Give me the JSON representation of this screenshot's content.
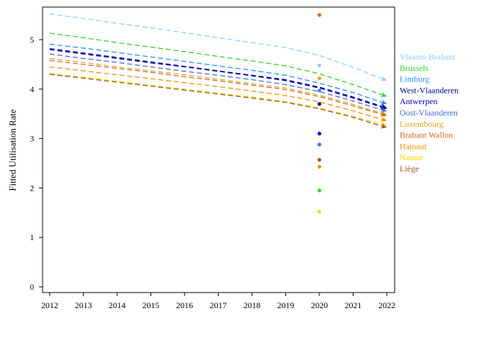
{
  "chart_data": {
    "type": "line",
    "title": "",
    "xlabel": "",
    "ylabel": "Fitted Utilisation Rate",
    "xlim": [
      2012,
      2022
    ],
    "ylim": [
      0,
      5.5
    ],
    "x_ticks": [
      "2012",
      "2013",
      "2014",
      "2015",
      "2016",
      "2017",
      "2018",
      "2019",
      "2020",
      "2021",
      "2022"
    ],
    "y_ticks": [
      "0",
      "1",
      "2",
      "3",
      "4",
      "5"
    ],
    "grid": false,
    "legend_position": "right",
    "line_style": "dashed with arrowheads",
    "x": [
      2012,
      2013,
      2014,
      2015,
      2016,
      2017,
      2018,
      2019,
      2020,
      2021,
      2022
    ],
    "series": [
      {
        "name": "Vlaams-Brabant",
        "color": "#87cefa",
        "values": [
          5.52,
          5.43,
          5.33,
          5.24,
          5.14,
          5.04,
          4.94,
          4.84,
          4.68,
          4.44,
          4.17
        ],
        "observed_2020": 4.48
      },
      {
        "name": "Brussels",
        "color": "#32cd32",
        "values": [
          5.13,
          5.04,
          4.94,
          4.85,
          4.76,
          4.66,
          4.57,
          4.47,
          4.31,
          4.09,
          3.85
        ],
        "observed_2020": 1.95
      },
      {
        "name": "Limburg",
        "color": "#1e90ff",
        "values": [
          4.91,
          4.83,
          4.74,
          4.65,
          4.56,
          4.47,
          4.38,
          4.28,
          4.12,
          3.93,
          3.7
        ],
        "observed_2020": 3.97
      },
      {
        "name": "West-Vlaanderen",
        "color": "#00008b",
        "values": [
          4.82,
          4.73,
          4.64,
          4.55,
          4.46,
          4.37,
          4.28,
          4.19,
          4.04,
          3.84,
          3.62
        ],
        "observed_2020": 3.7
      },
      {
        "name": "Antwerpen",
        "color": "#0000cd",
        "values": [
          4.8,
          4.71,
          4.62,
          4.53,
          4.45,
          4.36,
          4.27,
          4.17,
          4.02,
          3.82,
          3.6
        ],
        "observed_2020": 3.1
      },
      {
        "name": "Oost-Vlaanderen",
        "color": "#4169e1",
        "values": [
          4.71,
          4.62,
          4.54,
          4.45,
          4.36,
          4.28,
          4.19,
          4.09,
          3.95,
          3.76,
          3.55
        ],
        "observed_2020": 2.88
      },
      {
        "name": "Luxembourg",
        "color": "#daa520",
        "values": [
          4.62,
          4.54,
          4.45,
          4.37,
          4.29,
          4.2,
          4.11,
          4.02,
          3.88,
          3.69,
          3.48
        ],
        "observed_2020": 4.22
      },
      {
        "name": "Brabant Wallon",
        "color": "#d2691e",
        "values": [
          4.58,
          4.5,
          4.42,
          4.34,
          4.25,
          4.17,
          4.08,
          3.99,
          3.85,
          3.66,
          3.46
        ],
        "observed_2020": 5.5
      },
      {
        "name": "Hainaut",
        "color": "#ff8c00",
        "values": [
          4.45,
          4.37,
          4.29,
          4.21,
          4.13,
          4.05,
          3.96,
          3.87,
          3.74,
          3.56,
          3.36
        ],
        "observed_2020": 2.43
      },
      {
        "name": "Namur",
        "color": "#ffd700",
        "values": [
          4.32,
          4.24,
          4.16,
          4.08,
          4.0,
          3.92,
          3.84,
          3.75,
          3.62,
          3.45,
          3.26
        ],
        "observed_2020": 1.52
      },
      {
        "name": "Liège",
        "color": "#a0522d",
        "values": [
          4.3,
          4.22,
          4.14,
          4.06,
          3.98,
          3.9,
          3.82,
          3.73,
          3.6,
          3.43,
          3.22
        ],
        "observed_2020": 2.57
      }
    ]
  }
}
